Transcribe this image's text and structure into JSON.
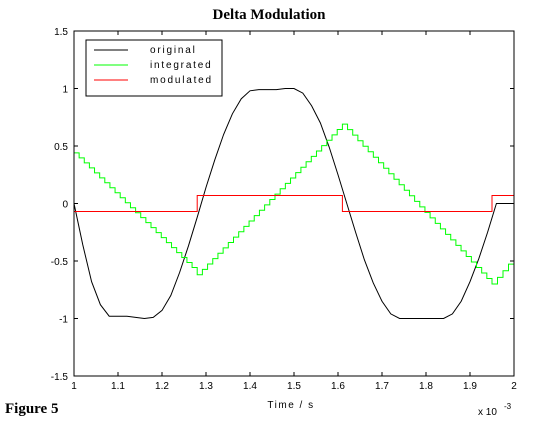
{
  "figure_label": "Figure 5",
  "chart_data": {
    "type": "line",
    "title": "Delta Modulation",
    "xlabel": "Time / s",
    "ylabel": "",
    "x_scale_note": "x 10",
    "x_scale_exponent": "-3",
    "xlim": [
      1,
      2
    ],
    "ylim": [
      -1.5,
      1.5
    ],
    "x_ticks": [
      "1",
      "1.1",
      "1.2",
      "1.3",
      "1.4",
      "1.5",
      "1.6",
      "1.7",
      "1.8",
      "1.9",
      "2"
    ],
    "y_ticks": [
      "1.5",
      "1",
      "0.5",
      "0",
      "-0.5",
      "-1",
      "-1.5"
    ],
    "grid": false,
    "legend_position": "top-left",
    "series": [
      {
        "name": "original",
        "color": "#000000",
        "style": "line",
        "description_values": {
          "x": [
            1.0,
            1.02,
            1.04,
            1.06,
            1.08,
            1.1,
            1.12,
            1.14,
            1.16,
            1.18,
            1.2,
            1.22,
            1.24,
            1.26,
            1.28,
            1.3,
            1.32,
            1.34,
            1.36,
            1.38,
            1.4,
            1.42,
            1.44,
            1.46,
            1.48,
            1.5,
            1.52,
            1.54,
            1.56,
            1.58,
            1.6,
            1.62,
            1.64,
            1.66,
            1.68,
            1.7,
            1.72,
            1.74,
            1.76,
            1.78,
            1.8,
            1.82,
            1.84,
            1.86,
            1.88,
            1.9,
            1.92,
            1.94,
            1.96,
            1.98,
            2.0
          ],
          "y": [
            0.0,
            -0.36,
            -0.68,
            -0.88,
            -0.98,
            -0.98,
            -0.98,
            -0.99,
            -1.0,
            -0.99,
            -0.93,
            -0.8,
            -0.6,
            -0.37,
            -0.12,
            0.14,
            0.38,
            0.6,
            0.78,
            0.91,
            0.98,
            0.99,
            0.99,
            0.99,
            1.0,
            1.0,
            0.96,
            0.85,
            0.7,
            0.49,
            0.25,
            0.0,
            -0.25,
            -0.49,
            -0.69,
            -0.85,
            -0.96,
            -1.0,
            -1.0,
            -1.0,
            -1.0,
            -1.0,
            -1.0,
            -0.96,
            -0.85,
            -0.68,
            -0.48,
            -0.25,
            0.0,
            0.0,
            0.0
          ]
        }
      },
      {
        "name": "integrated",
        "color": "#00ff00",
        "style": "steps",
        "step_x": [
          1.0,
          1.28,
          1.61,
          1.95,
          2.0
        ],
        "step_y_start": [
          0.44,
          -0.62,
          0.69,
          -0.7
        ],
        "step_y_end": [
          -0.6,
          0.69,
          -0.7,
          -0.47
        ]
      },
      {
        "name": "modulated",
        "color": "#ff0000",
        "style": "steps",
        "x": [
          1.0,
          1.28,
          1.61,
          1.95,
          2.0
        ],
        "y": [
          -0.07,
          0.07,
          -0.07,
          0.07,
          0.07
        ]
      }
    ]
  }
}
